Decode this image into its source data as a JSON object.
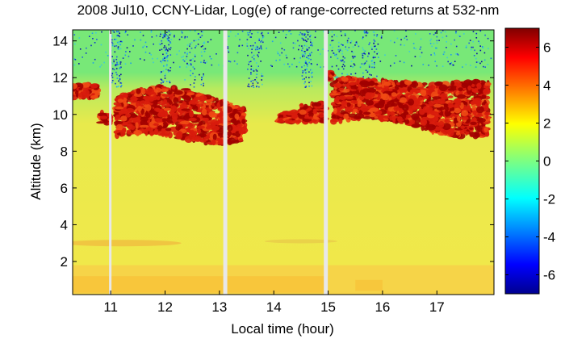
{
  "chart_data": {
    "type": "heatmap",
    "title": "2008 Jul10, CCNY-Lidar, Log(e) of range-corrected returns at 532-nm",
    "xlabel": "Local time (hour)",
    "ylabel": "Altitude (km)",
    "xlim": [
      10.3,
      18.05
    ],
    "ylim": [
      0.2,
      14.6
    ],
    "x_ticks": [
      11,
      12,
      13,
      14,
      15,
      16,
      17
    ],
    "y_ticks": [
      2,
      4,
      6,
      8,
      10,
      12,
      14
    ],
    "colorbar": {
      "range": [
        -7,
        7
      ],
      "ticks": [
        6,
        4,
        2,
        0,
        -2,
        -4,
        -6
      ],
      "colormap": "jet"
    },
    "data_gaps_hour": [
      11.0,
      13.1,
      14.95
    ],
    "layers": [
      {
        "feature": "free troposphere",
        "alt_km": [
          0.2,
          12.0
        ],
        "value": 3.0
      },
      {
        "feature": "upper background",
        "alt_km": [
          12.0,
          14.6
        ],
        "value": 0.4
      },
      {
        "feature": "noisy high-altitude streaks",
        "value_range": [
          -6,
          -1
        ]
      },
      {
        "feature": "boundary layer",
        "alt_km": [
          0.3,
          1.8
        ],
        "value": 4.0
      },
      {
        "feature": "elevated aerosol layer",
        "alt_km": [
          2.8,
          3.2
        ],
        "time_hour": [
          10.3,
          12.3
        ],
        "value": 4.0
      },
      {
        "feature": "cirrus cloud",
        "time_hour": [
          10.3,
          13.5
        ],
        "alt_km": [
          9.0,
          11.8
        ],
        "value": 6.0
      },
      {
        "feature": "cirrus cloud",
        "time_hour": [
          14.1,
          14.9
        ],
        "alt_km": [
          9.6,
          10.6
        ],
        "value": 6.0
      },
      {
        "feature": "cirrus cloud",
        "time_hour": [
          15.0,
          17.9
        ],
        "alt_km": [
          9.3,
          12.2
        ],
        "value": 6.0
      }
    ],
    "colors": {
      "background_upper": "#78e878",
      "background_lower": "#f2e84a",
      "boundary_layer": "#f8c33a",
      "cloud": "#d81c0c",
      "cloud_core": "#a00000",
      "gap": "#e8e8e8"
    }
  }
}
